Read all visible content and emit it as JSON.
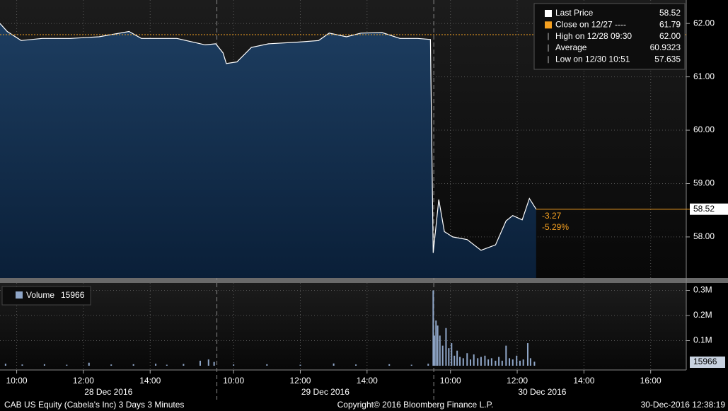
{
  "chart_data": [
    {
      "type": "line",
      "xlim": [
        0,
        1234
      ],
      "ylim": [
        57.23,
        62.44
      ],
      "yticks": [
        {
          "value": 58,
          "label": "58.00"
        },
        {
          "value": 59,
          "label": "59.00"
        },
        {
          "value": 60,
          "label": "60.00"
        },
        {
          "value": 61,
          "label": "61.00"
        },
        {
          "value": 62,
          "label": "62.00"
        }
      ],
      "xticks": [
        {
          "value": 30,
          "label": "10:00"
        },
        {
          "value": 150,
          "label": "12:00"
        },
        {
          "value": 270,
          "label": "14:00"
        },
        {
          "value": 420,
          "label": "10:00"
        },
        {
          "value": 540,
          "label": "12:00"
        },
        {
          "value": 660,
          "label": "14:00"
        },
        {
          "value": 810,
          "label": "10:00"
        },
        {
          "value": 930,
          "label": "12:00"
        },
        {
          "value": 1050,
          "label": "14:00"
        },
        {
          "value": 1170,
          "label": "16:00"
        }
      ],
      "x_groups": [
        {
          "value": 195,
          "label": "28 Dec 2016"
        },
        {
          "value": 585,
          "label": "29 Dec 2016"
        },
        {
          "value": 975,
          "label": "30 Dec 2016"
        }
      ],
      "series": [
        {
          "name": "Last Price",
          "color": "#ffffff",
          "x": [
            0,
            13,
            38,
            76,
            127,
            178,
            232,
            254,
            318,
            369,
            388,
            401,
            407,
            426,
            452,
            483,
            534,
            573,
            592,
            623,
            649,
            687,
            719,
            751,
            774,
            779,
            789,
            799,
            814,
            840,
            865,
            891,
            910,
            922,
            939,
            952,
            964
          ],
          "values": [
            62.0,
            61.85,
            61.68,
            61.72,
            61.72,
            61.75,
            61.85,
            61.72,
            61.72,
            61.6,
            61.62,
            61.45,
            61.25,
            61.28,
            61.55,
            61.62,
            61.65,
            61.68,
            61.82,
            61.75,
            61.82,
            61.83,
            61.72,
            61.72,
            61.7,
            57.7,
            58.7,
            58.1,
            58.0,
            57.95,
            57.75,
            57.85,
            58.3,
            58.4,
            58.32,
            58.72,
            58.52
          ]
        }
      ],
      "legend": [
        {
          "label": "Close on 12/27 ----",
          "value": 61.79,
          "color": "#f5a020"
        },
        {
          "label": "High on 12/28 09:30",
          "value": "62.00"
        },
        {
          "label": "Average",
          "value": 60.9323
        },
        {
          "label": "Low on 12/30 10:51",
          "value": 57.635
        }
      ],
      "annotations": [
        "-3.27",
        "-5.29%"
      ]
    },
    {
      "type": "bar",
      "xlim": [
        0,
        1234
      ],
      "ylim": [
        0,
        324000
      ],
      "yticks": [
        {
          "value": 100000,
          "label": "0.1M"
        },
        {
          "value": 200000,
          "label": "0.2M"
        },
        {
          "value": 300000,
          "label": "0.3M"
        }
      ],
      "series": [
        {
          "name": "Volume",
          "color": "#8fa6c8",
          "x": [
            10,
            40,
            80,
            120,
            160,
            200,
            240,
            280,
            300,
            330,
            360,
            375,
            385,
            420,
            480,
            540,
            600,
            640,
            700,
            740,
            770,
            779,
            781,
            784,
            787,
            791,
            796,
            802,
            807,
            812,
            817,
            822,
            827,
            833,
            840,
            846,
            852,
            859,
            865,
            872,
            878,
            884,
            891,
            897,
            903,
            910,
            916,
            922,
            929,
            935,
            941,
            949,
            954,
            961
          ],
          "values": [
            8000,
            5000,
            6000,
            4000,
            12000,
            5000,
            6000,
            8000,
            4000,
            7000,
            20000,
            25000,
            15000,
            5000,
            6000,
            4000,
            9000,
            5000,
            6000,
            4000,
            8000,
            300000,
            120000,
            180000,
            160000,
            120000,
            80000,
            150000,
            70000,
            90000,
            40000,
            60000,
            35000,
            30000,
            50000,
            25000,
            45000,
            30000,
            35000,
            40000,
            25000,
            30000,
            20000,
            35000,
            20000,
            80000,
            30000,
            25000,
            40000,
            20000,
            25000,
            90000,
            30000,
            15966
          ]
        }
      ]
    }
  ],
  "footer": {
    "left": "CAB US Equity (Cabela's Inc) 3 Days 3 Minutes",
    "center": "Copyright© 2016 Bloomberg Finance L.P.",
    "right": "30-Dec-2016 12:38:19"
  }
}
